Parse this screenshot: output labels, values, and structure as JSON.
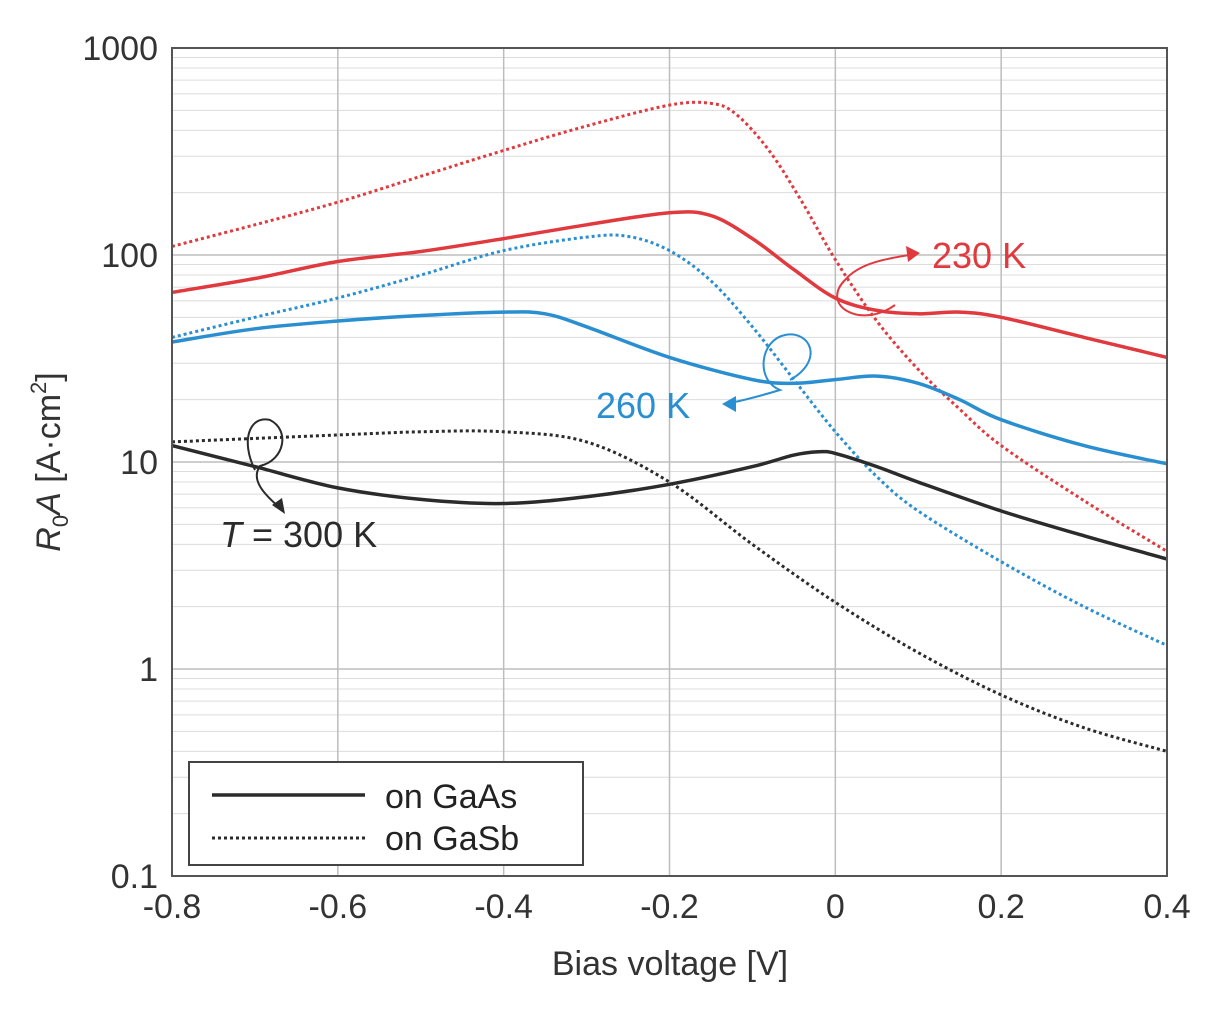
{
  "chart_data": {
    "type": "line",
    "title": "",
    "xlabel": "Bias voltage [V]",
    "ylabel": "R0A [A·cm2]",
    "ylabel_parts": {
      "r": "R",
      "sub": "0",
      "a": "A",
      "units": " [A·cm",
      "sup": "2",
      "close": "]"
    },
    "xscale": "linear",
    "yscale": "log",
    "xlim": [
      -0.8,
      0.4
    ],
    "ylim": [
      0.1,
      1000
    ],
    "grid": true,
    "x_ticks": [
      -0.8,
      -0.6,
      -0.4,
      -0.2,
      0,
      0.2,
      0.4
    ],
    "x_tick_labels": [
      "-0.8",
      "-0.6",
      "-0.4",
      "-0.2",
      "0",
      "0.2",
      "0.4"
    ],
    "y_ticks": [
      0.1,
      1,
      10,
      100,
      1000
    ],
    "y_tick_labels": [
      "0.1",
      "1",
      "10",
      "100",
      "1000"
    ],
    "series": [
      {
        "name": "GaAs 230 K",
        "substrate": "GaAs",
        "temperature": "230 K",
        "color": "#e0393e",
        "style": "solid",
        "x": [
          -0.8,
          -0.7,
          -0.6,
          -0.5,
          -0.4,
          -0.3,
          -0.2,
          -0.15,
          -0.1,
          -0.05,
          0,
          0.05,
          0.1,
          0.15,
          0.2,
          0.3,
          0.4
        ],
        "y": [
          66,
          77,
          93,
          104,
          120,
          140,
          160,
          155,
          120,
          85,
          62,
          54,
          52,
          53,
          50,
          40,
          32
        ]
      },
      {
        "name": "GaSb 230 K",
        "substrate": "GaSb",
        "temperature": "230 K",
        "color": "#e0393e",
        "style": "dotted",
        "x": [
          -0.8,
          -0.7,
          -0.6,
          -0.5,
          -0.4,
          -0.3,
          -0.2,
          -0.15,
          -0.12,
          -0.08,
          -0.04,
          0,
          0.05,
          0.1,
          0.15,
          0.2,
          0.3,
          0.4
        ],
        "y": [
          110,
          140,
          180,
          240,
          320,
          420,
          530,
          540,
          480,
          320,
          180,
          95,
          48,
          28,
          18,
          12,
          6.5,
          3.7
        ]
      },
      {
        "name": "GaAs 260 K",
        "substrate": "GaAs",
        "temperature": "260 K",
        "color": "#2a8fd0",
        "style": "solid",
        "x": [
          -0.8,
          -0.7,
          -0.6,
          -0.5,
          -0.4,
          -0.35,
          -0.3,
          -0.2,
          -0.1,
          -0.05,
          0,
          0.05,
          0.1,
          0.15,
          0.2,
          0.3,
          0.4
        ],
        "y": [
          38,
          44,
          48,
          51,
          53,
          52,
          45,
          32,
          25,
          24,
          25,
          26,
          24,
          20,
          16,
          12,
          9.8
        ]
      },
      {
        "name": "GaSb 260 K",
        "substrate": "GaSb",
        "temperature": "260 K",
        "color": "#2a8fd0",
        "style": "dotted",
        "x": [
          -0.8,
          -0.7,
          -0.6,
          -0.5,
          -0.4,
          -0.3,
          -0.25,
          -0.2,
          -0.15,
          -0.1,
          -0.05,
          0,
          0.05,
          0.1,
          0.2,
          0.3,
          0.4
        ],
        "y": [
          40,
          50,
          62,
          80,
          105,
          122,
          123,
          105,
          75,
          45,
          25,
          14,
          8.5,
          5.8,
          3.3,
          2,
          1.3
        ]
      },
      {
        "name": "GaAs 300 K",
        "substrate": "GaAs",
        "temperature": "300 K",
        "color": "#2b2b2b",
        "style": "solid",
        "x": [
          -0.8,
          -0.7,
          -0.6,
          -0.5,
          -0.4,
          -0.3,
          -0.2,
          -0.1,
          -0.05,
          -0.02,
          0,
          0.05,
          0.1,
          0.2,
          0.3,
          0.4
        ],
        "y": [
          12,
          9.5,
          7.5,
          6.6,
          6.3,
          6.8,
          7.8,
          9.5,
          10.8,
          11.2,
          11,
          9.5,
          8,
          5.8,
          4.4,
          3.4
        ]
      },
      {
        "name": "GaSb 300 K",
        "substrate": "GaSb",
        "temperature": "300 K",
        "color": "#2b2b2b",
        "style": "dotted",
        "x": [
          -0.8,
          -0.7,
          -0.6,
          -0.5,
          -0.4,
          -0.3,
          -0.2,
          -0.1,
          0,
          0.1,
          0.2,
          0.3,
          0.4
        ],
        "y": [
          12.5,
          13,
          13.5,
          14,
          14,
          12.5,
          8,
          4,
          2.1,
          1.2,
          0.75,
          0.52,
          0.4
        ]
      }
    ],
    "annotations": [
      {
        "id": "label-230",
        "text": "230 K",
        "color": "#e0393e"
      },
      {
        "id": "label-260",
        "text": "260 K",
        "color": "#2a8fd0"
      },
      {
        "id": "label-300",
        "italic": "T",
        "text": " = 300 K",
        "color": "#2b2b2b"
      }
    ],
    "legend": {
      "position": "bottom-left",
      "entries": [
        {
          "label": "on GaAs",
          "style": "solid",
          "color": "#2b2b2b"
        },
        {
          "label": "on GaSb",
          "style": "dotted",
          "color": "#2b2b2b"
        }
      ]
    }
  }
}
